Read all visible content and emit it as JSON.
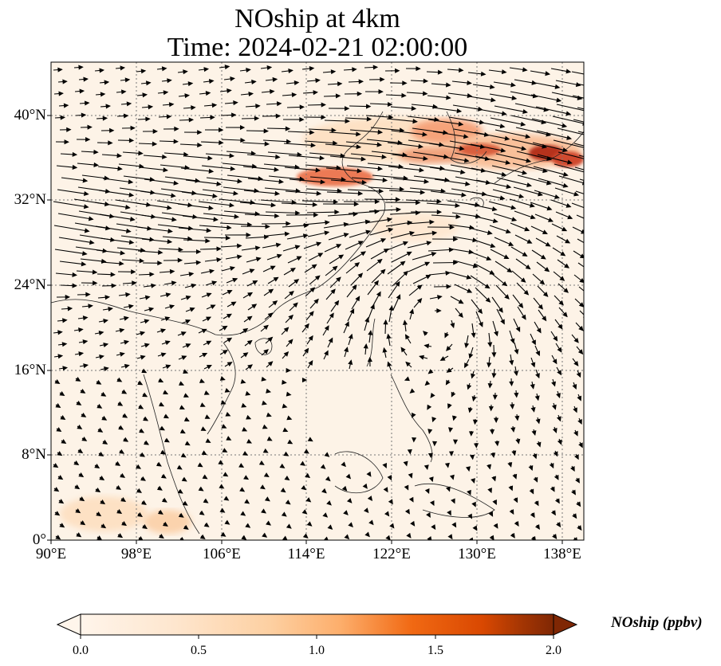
{
  "title": {
    "line1": "NOship at 4km",
    "line2": "Time: 2024-02-21 02:00:00"
  },
  "map": {
    "lon_range": [
      90,
      140
    ],
    "lat_range": [
      0,
      45
    ],
    "lat_ticks": [
      {
        "value": 40,
        "label": "40°N"
      },
      {
        "value": 32,
        "label": "32°N"
      },
      {
        "value": 24,
        "label": "24°N"
      },
      {
        "value": 16,
        "label": "16°N"
      },
      {
        "value": 8,
        "label": "8°N"
      },
      {
        "value": 0,
        "label": "0°"
      }
    ],
    "lon_ticks": [
      {
        "value": 90,
        "label": "90°E"
      },
      {
        "value": 98,
        "label": "98°E"
      },
      {
        "value": 106,
        "label": "106°E"
      },
      {
        "value": 114,
        "label": "114°E"
      },
      {
        "value": 122,
        "label": "122°E"
      },
      {
        "value": 130,
        "label": "130°E"
      },
      {
        "value": 138,
        "label": "138°E"
      }
    ],
    "gridlines": "dotted",
    "wind_vectors": "shown",
    "cyclone_center": {
      "lon": 126,
      "lat": 22
    }
  },
  "colorbar": {
    "label": "NOship (ppbv)",
    "colormap": [
      "#fff5eb",
      "#fdd0a2",
      "#fdae6b",
      "#f16913",
      "#d94801",
      "#a63603",
      "#7f2704"
    ],
    "ticks": [
      {
        "value": 0.0,
        "label": "0.0"
      },
      {
        "value": 0.5,
        "label": "0.5"
      },
      {
        "value": 1.0,
        "label": "1.0"
      },
      {
        "value": 1.5,
        "label": "1.5"
      },
      {
        "value": 2.0,
        "label": "2.0"
      }
    ],
    "range": [
      0.0,
      2.0
    ],
    "extend": "both"
  }
}
